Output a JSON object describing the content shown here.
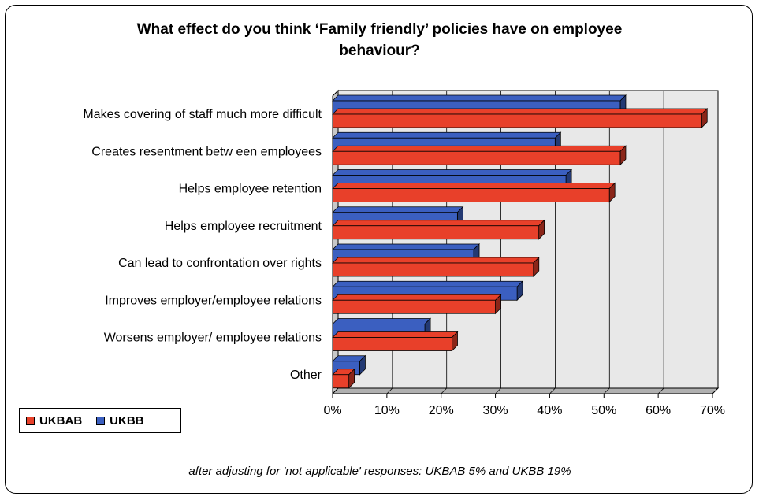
{
  "chart_data": {
    "type": "bar",
    "orientation": "horizontal",
    "title_line1": "What effect do you think ‘Family friendly’ policies have on employee",
    "title_line2": "behaviour?",
    "categories": [
      "Makes covering of staff much more difficult",
      "Creates resentment betw een employees",
      "Helps employee retention",
      "Helps employee recruitment",
      "Can lead to confrontation over rights",
      "Improves employer/employee relations",
      "Worsens employer/ employee relations",
      "Other"
    ],
    "series": [
      {
        "name": "UKBB",
        "color": "#3b5fc0",
        "values": [
          53,
          41,
          43,
          23,
          26,
          34,
          17,
          5
        ]
      },
      {
        "name": "UKBAB",
        "color": "#e8402a",
        "values": [
          68,
          53,
          51,
          38,
          37,
          30,
          22,
          3
        ]
      }
    ],
    "xlim": [
      0,
      70
    ],
    "xticks": [
      "0%",
      "10%",
      "20%",
      "30%",
      "40%",
      "50%",
      "60%",
      "70%"
    ],
    "grid": true,
    "three_d": true,
    "legend": {
      "position": "bottom-left",
      "items": [
        "UKBAB",
        "UKBB"
      ]
    },
    "note": "after adjusting for 'not applicable' responses: UKBAB 5% and UKBB 19%"
  }
}
